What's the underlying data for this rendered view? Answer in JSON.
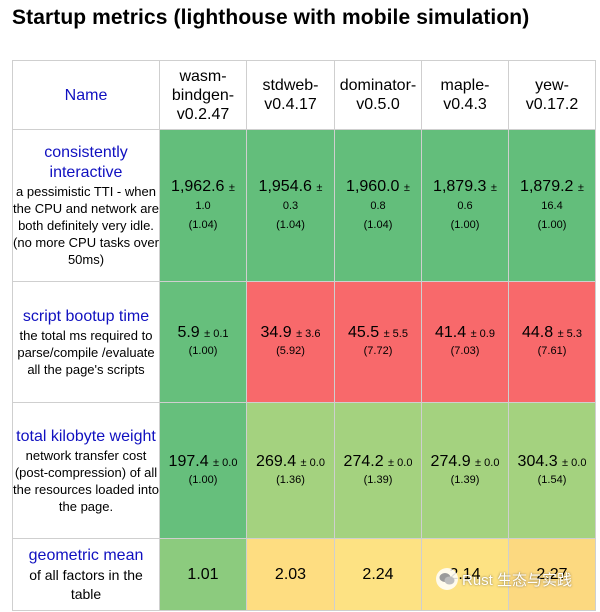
{
  "title": "Startup metrics (lighthouse with mobile simulation)",
  "header": {
    "name": "Name",
    "columns": [
      "wasm-bindgen-v0.2.47",
      "stdweb-v0.4.17",
      "dominator-v0.5.0",
      "maple-v0.4.3",
      "yew-v0.17.2"
    ]
  },
  "rows": [
    {
      "label": "consistently interactive",
      "desc": "a pessimistic TTI - when the CPU and network are both definitely very idle. (no more CPU tasks over 50ms)",
      "cells": [
        {
          "value": "1,962.6",
          "pm": "±",
          "err": "1.0",
          "ratio": "(1.04)"
        },
        {
          "value": "1,954.6",
          "pm": "±",
          "err": "0.3",
          "ratio": "(1.04)"
        },
        {
          "value": "1,960.0",
          "pm": "±",
          "err": "0.8",
          "ratio": "(1.04)"
        },
        {
          "value": "1,879.3",
          "pm": "±",
          "err": "0.6",
          "ratio": "(1.00)"
        },
        {
          "value": "1,879.2",
          "pm": "±",
          "err": "16.4",
          "ratio": "(1.00)"
        }
      ]
    },
    {
      "label": "script bootup time",
      "desc": "the total ms required to parse/compile /evaluate all the page's scripts",
      "cells": [
        {
          "value": "5.9",
          "err": "± 0.1",
          "ratio": "(1.00)"
        },
        {
          "value": "34.9",
          "err": "± 3.6",
          "ratio": "(5.92)"
        },
        {
          "value": "45.5",
          "err": "± 5.5",
          "ratio": "(7.72)"
        },
        {
          "value": "41.4",
          "err": "± 0.9",
          "ratio": "(7.03)"
        },
        {
          "value": "44.8",
          "err": "± 5.3",
          "ratio": "(7.61)"
        }
      ]
    },
    {
      "label": "total kilobyte weight",
      "desc": "network transfer cost (post-compression) of all the resources loaded into the page.",
      "cells": [
        {
          "value": "197.4",
          "err": "± 0.0",
          "ratio": "(1.00)"
        },
        {
          "value": "269.4",
          "err": "± 0.0",
          "ratio": "(1.36)"
        },
        {
          "value": "274.2",
          "err": "± 0.0",
          "ratio": "(1.39)"
        },
        {
          "value": "274.9",
          "err": "± 0.0",
          "ratio": "(1.39)"
        },
        {
          "value": "304.3",
          "err": "± 0.0",
          "ratio": "(1.54)"
        }
      ]
    },
    {
      "label": "geometric mean",
      "desc": "of all factors in the table",
      "cells": [
        {
          "value": "1.01"
        },
        {
          "value": "2.03"
        },
        {
          "value": "2.24"
        },
        {
          "value": "2.14"
        },
        {
          "value": "2.27"
        }
      ]
    }
  ],
  "watermark": "Rust 生态与实践",
  "watermark_icon": "wechat-icon"
}
